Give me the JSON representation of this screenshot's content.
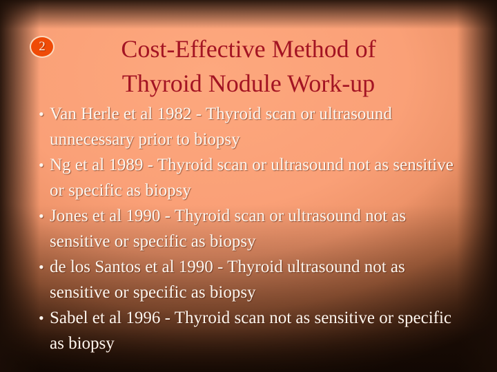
{
  "slide": {
    "slide_number": "2",
    "bullet_char": "•",
    "title_lines": [
      "Cost-Effective Method of",
      "Thyroid Nodule Work-up"
    ],
    "bullets": [
      {
        "lines": [
          "Van Herle et al 1982 - Thyroid scan or ultrasound",
          "unnecessary prior to biopsy"
        ]
      },
      {
        "lines": [
          "Ng et al 1989 - Thyroid scan or ultrasound not as sensitive",
          "or specific as biopsy"
        ]
      },
      {
        "lines": [
          "Jones et al 1990 - Thyroid scan or ultrasound not as",
          "sensitive or specific as biopsy"
        ]
      },
      {
        "lines": [
          "de los Santos et al 1990 - Thyroid ultrasound not as",
          "sensitive or specific as biopsy"
        ]
      },
      {
        "lines": [
          "Sabel et al 1996 - Thyroid scan not as sensitive or specific",
          "as biopsy"
        ]
      }
    ],
    "colors": {
      "title_text": "#a31423",
      "body_text": "#fdf6ef",
      "background_core": "#faa077",
      "background_edge": "#200f07",
      "badge_fill": "#ef4b07",
      "badge_ring": "#fbd9be",
      "badge_text": "#ffeede"
    }
  }
}
